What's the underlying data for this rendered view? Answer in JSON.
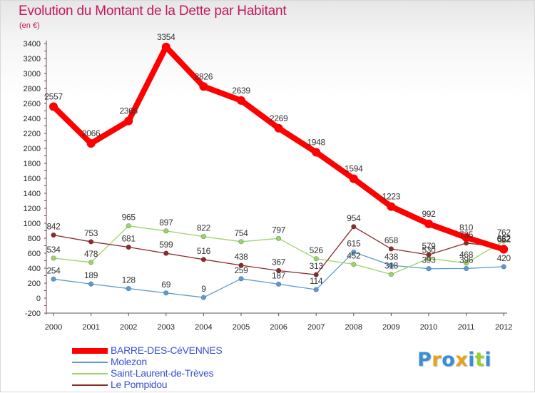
{
  "title": "Evolution du Montant de la Dette par Habitant",
  "unit": "(en €)",
  "logo": {
    "letters": [
      "P",
      "r",
      "o",
      "x",
      "i",
      "t",
      "i"
    ],
    "colors": [
      "#3a8ed6",
      "#e8a21a",
      "#3a8ed6",
      "#e8a21a",
      "#3a8ed6",
      "#9acd32",
      "#3a8ed6"
    ]
  },
  "chart_data": {
    "type": "line",
    "title": "Evolution du Montant de la Dette par Habitant",
    "ylabel": "(en €)",
    "xlabel": "",
    "x": [
      "2000",
      "2001",
      "2002",
      "2003",
      "2004",
      "2005",
      "2006",
      "2007",
      "2008",
      "2009",
      "2010",
      "2011",
      "2012"
    ],
    "ylim": [
      -200,
      3400
    ],
    "yticks": [
      -200,
      0,
      200,
      400,
      600,
      800,
      1000,
      1200,
      1400,
      1600,
      1800,
      2000,
      2200,
      2400,
      2600,
      2800,
      3000,
      3200,
      3400
    ],
    "grid": false,
    "legend_position": "bottom-left",
    "series": [
      {
        "name": "BARRE-DES-CéVENNES",
        "color": "#ff0000",
        "values": [
          2557,
          2066,
          2365,
          3354,
          2826,
          2639,
          2269,
          1948,
          1594,
          1223,
          992,
          810,
          652
        ],
        "labels": [
          "2557",
          "2066",
          "2365",
          "3354",
          "2826",
          "2639",
          "2269",
          "1948",
          "1594",
          "1223",
          "992",
          "810",
          "652"
        ]
      },
      {
        "name": "Molezon",
        "color": "#5b9bd5",
        "values": [
          254,
          189,
          128,
          69,
          9,
          259,
          187,
          114,
          615,
          438,
          393,
          396,
          420
        ],
        "labels": [
          "254",
          "189",
          "128",
          "69",
          "9",
          "259",
          "187",
          "114",
          "615",
          "438",
          "393",
          "396",
          "420"
        ]
      },
      {
        "name": "Saint-Laurent-de-Trèves",
        "color": "#9ad46a",
        "values": [
          534,
          478,
          965,
          897,
          822,
          754,
          797,
          526,
          452,
          318,
          530,
          468,
          762
        ],
        "labels": [
          "534",
          "478",
          "965",
          "897",
          "822",
          "754",
          "797",
          "526",
          "452",
          "318",
          "530",
          "468",
          "762"
        ]
      },
      {
        "name": "Le Pompidou",
        "color": "#8b2b2b",
        "values": [
          842,
          753,
          681,
          599,
          516,
          438,
          367,
          313,
          954,
          658,
          579,
          735,
          682
        ],
        "labels": [
          "842",
          "753",
          "681",
          "599",
          "516",
          "438",
          "367",
          "313",
          "954",
          "658",
          "579",
          "735",
          "682"
        ]
      }
    ]
  }
}
